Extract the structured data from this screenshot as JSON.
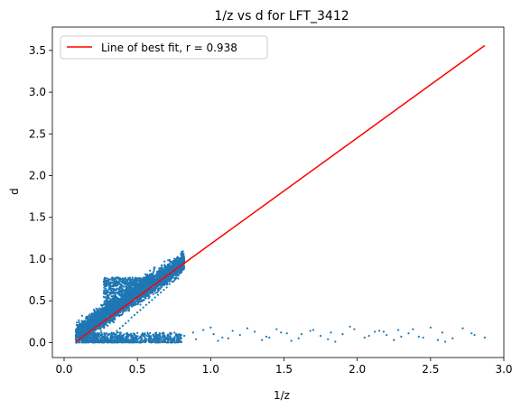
{
  "chart_data": {
    "type": "scatter",
    "title": "1/z vs d for LFT_3412",
    "xlabel": "1/z",
    "ylabel": "d",
    "xlim": [
      -0.08,
      3.0
    ],
    "ylim": [
      -0.18,
      3.78
    ],
    "xticks": [
      0.0,
      0.5,
      1.0,
      1.5,
      2.0,
      2.5,
      3.0
    ],
    "xtick_labels": [
      "0.0",
      "0.5",
      "1.0",
      "1.5",
      "2.0",
      "2.5",
      "3.0"
    ],
    "yticks": [
      0.0,
      0.5,
      1.0,
      1.5,
      2.0,
      2.5,
      3.0,
      3.5
    ],
    "ytick_labels": [
      "0.0",
      "0.5",
      "1.0",
      "1.5",
      "2.0",
      "2.5",
      "3.0",
      "3.5"
    ],
    "grid": false,
    "legend_position": "top-left",
    "colors": {
      "scatter": "#1f77b4",
      "fit_line": "#ff0000"
    },
    "series": [
      {
        "kind": "scatter",
        "x": [
          0.08,
          0.1,
          0.12,
          0.14,
          0.15,
          0.16,
          0.17,
          0.18,
          0.19,
          0.2,
          0.21,
          0.22,
          0.23,
          0.24,
          0.25,
          0.26,
          0.27,
          0.28,
          0.29,
          0.3,
          0.31,
          0.32,
          0.33,
          0.34,
          0.35,
          0.36,
          0.37,
          0.38,
          0.39,
          0.4,
          0.41,
          0.42,
          0.43,
          0.44,
          0.45,
          0.46,
          0.47,
          0.48,
          0.49,
          0.5,
          0.51,
          0.52,
          0.53,
          0.54,
          0.55,
          0.56,
          0.57,
          0.58,
          0.59,
          0.6,
          0.61,
          0.62,
          0.63,
          0.64,
          0.65,
          0.66,
          0.67,
          0.68,
          0.69,
          0.7,
          0.71,
          0.72,
          0.73,
          0.74,
          0.75,
          0.76,
          0.77,
          0.78,
          0.79,
          0.8,
          0.81,
          0.82,
          0.28,
          0.29,
          0.3,
          0.31,
          0.32,
          0.33,
          0.34,
          0.35,
          0.36,
          0.37,
          0.38,
          0.39,
          0.4,
          0.41,
          0.42,
          0.43,
          0.44,
          0.45,
          0.46,
          0.47,
          0.48,
          0.49,
          0.5,
          0.51,
          0.52,
          0.53,
          0.54,
          0.55,
          0.56,
          0.57,
          0.58,
          0.59,
          0.6,
          0.28,
          0.3,
          0.32,
          0.34,
          0.36,
          0.38,
          0.4,
          0.42,
          0.44,
          0.46,
          0.48,
          0.5,
          0.52,
          0.54,
          0.56,
          0.58,
          0.6,
          0.62,
          0.64,
          0.66,
          0.68,
          0.7,
          0.72,
          0.74,
          0.76,
          0.78,
          0.8,
          0.28,
          0.29,
          0.3,
          0.31,
          0.32,
          0.33,
          0.34,
          0.35,
          0.15,
          0.18,
          0.2,
          0.22,
          0.24,
          0.26,
          0.28,
          0.3,
          0.33,
          0.36,
          0.38,
          0.41,
          0.43,
          0.46,
          0.48,
          0.5,
          0.52,
          0.55,
          0.58,
          0.61,
          0.63,
          0.66,
          0.68,
          0.71,
          0.73,
          0.75,
          0.78,
          0.8,
          0.82,
          0.88,
          0.95,
          1.02,
          1.08,
          1.15,
          1.2,
          1.3,
          1.38,
          1.45,
          1.52,
          1.6,
          1.68,
          1.75,
          1.82,
          1.9,
          1.98,
          2.05,
          2.12,
          2.2,
          2.28,
          2.35,
          2.42,
          2.5,
          2.58,
          2.65,
          2.72,
          2.8,
          2.87,
          0.9,
          1.0,
          1.12,
          1.25,
          1.35,
          1.48,
          1.55,
          1.7,
          1.8,
          1.95,
          2.08,
          2.18,
          2.25,
          2.38,
          2.45,
          2.6,
          2.78,
          1.05,
          1.4,
          1.62,
          1.85,
          2.15,
          2.3,
          2.55
        ],
        "y": [
          0.07,
          0.1,
          0.14,
          0.17,
          0.18,
          0.2,
          0.2,
          0.22,
          0.24,
          0.26,
          0.27,
          0.28,
          0.3,
          0.31,
          0.32,
          0.33,
          0.35,
          0.36,
          0.37,
          0.39,
          0.4,
          0.41,
          0.42,
          0.43,
          0.45,
          0.45,
          0.47,
          0.48,
          0.49,
          0.5,
          0.51,
          0.52,
          0.53,
          0.54,
          0.55,
          0.56,
          0.57,
          0.58,
          0.59,
          0.6,
          0.61,
          0.62,
          0.63,
          0.64,
          0.65,
          0.66,
          0.67,
          0.68,
          0.69,
          0.7,
          0.71,
          0.72,
          0.73,
          0.74,
          0.75,
          0.76,
          0.77,
          0.78,
          0.79,
          0.8,
          0.81,
          0.82,
          0.83,
          0.84,
          0.86,
          0.87,
          0.88,
          0.9,
          0.92,
          0.94,
          0.96,
          0.98,
          0.72,
          0.71,
          0.72,
          0.7,
          0.71,
          0.72,
          0.7,
          0.73,
          0.71,
          0.72,
          0.7,
          0.73,
          0.74,
          0.72,
          0.73,
          0.75,
          0.72,
          0.74,
          0.73,
          0.75,
          0.74,
          0.76,
          0.75,
          0.74,
          0.76,
          0.75,
          0.77,
          0.76,
          0.78,
          0.77,
          0.79,
          0.78,
          0.8,
          0.02,
          0.05,
          0.08,
          0.1,
          0.14,
          0.17,
          0.2,
          0.23,
          0.26,
          0.3,
          0.33,
          0.36,
          0.39,
          0.42,
          0.45,
          0.48,
          0.51,
          0.54,
          0.57,
          0.6,
          0.63,
          0.66,
          0.7,
          0.73,
          0.76,
          0.8,
          0.84,
          0.3,
          0.4,
          0.5,
          0.6,
          0.65,
          0.55,
          0.45,
          0.35,
          0.02,
          0.01,
          0.03,
          0.02,
          0.01,
          0.03,
          0.02,
          0.04,
          0.02,
          0.03,
          0.01,
          0.02,
          0.04,
          0.02,
          0.03,
          0.01,
          0.02,
          0.03,
          0.01,
          0.04,
          0.02,
          0.03,
          0.01,
          0.02,
          0.04,
          0.02,
          0.03,
          0.05,
          0.08,
          0.12,
          0.15,
          0.1,
          0.06,
          0.14,
          0.09,
          0.13,
          0.07,
          0.16,
          0.11,
          0.05,
          0.14,
          0.08,
          0.12,
          0.1,
          0.16,
          0.06,
          0.13,
          0.09,
          0.15,
          0.11,
          0.07,
          0.18,
          0.12,
          0.05,
          0.17,
          0.09,
          0.06,
          0.04,
          0.18,
          0.05,
          0.17,
          0.03,
          0.12,
          0.02,
          0.15,
          0.04,
          0.19,
          0.08,
          0.13,
          0.03,
          0.16,
          0.06,
          0.01,
          0.11,
          0.02,
          0.06,
          0.1,
          0.01,
          0.14,
          0.07,
          0.03
        ],
        "dense_band": {
          "x_range": [
            0.08,
            0.82
          ],
          "y_intercept": 0.0,
          "slope": 1.18,
          "spread": 0.06,
          "count": 3500
        },
        "cluster_block": {
          "x_range": [
            0.27,
            0.6
          ],
          "y_range": [
            0.45,
            0.78
          ],
          "count": 700
        },
        "floor_cluster": {
          "x_range": [
            0.12,
            0.8
          ],
          "y_range": [
            0.0,
            0.12
          ],
          "count": 800
        }
      },
      {
        "kind": "line",
        "name": "Line of best fit, r = 0.938",
        "x": [
          0.08,
          2.87
        ],
        "y": [
          0.01,
          3.56
        ]
      }
    ]
  }
}
